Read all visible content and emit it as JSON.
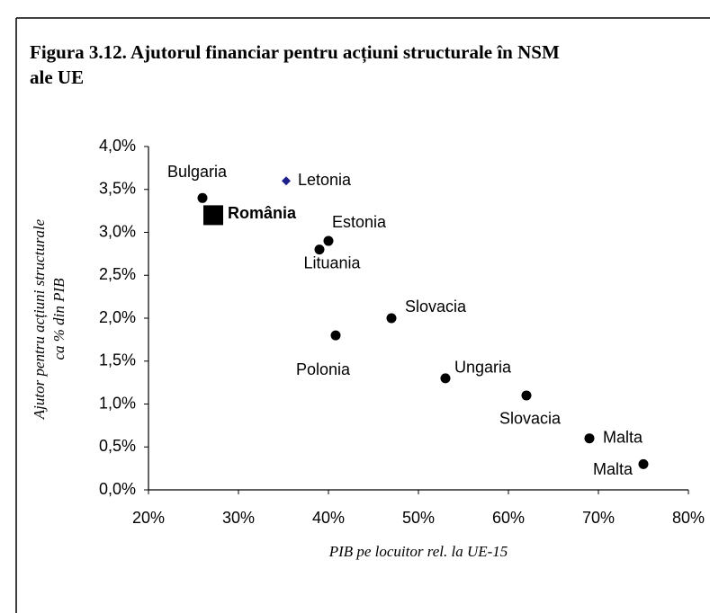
{
  "chart_data": {
    "type": "scatter",
    "title": "Figura 3.12. Ajutorul financiar pentru acțiuni structurale în NSM",
    "title_line2": "ale UE",
    "y_label": "Ajutor pentru acțiuni structurale",
    "y_label_line2": "ca % din PIB",
    "x_label": "PIB pe locuitor rel. la UE-15",
    "xlim": [
      20,
      80
    ],
    "xticks": [
      {
        "value": 20,
        "label": "20%"
      },
      {
        "value": 30,
        "label": "30%"
      },
      {
        "value": 40,
        "label": "40%"
      },
      {
        "value": 50,
        "label": "50%"
      },
      {
        "value": 60,
        "label": "60%"
      },
      {
        "value": 70,
        "label": "70%"
      },
      {
        "value": 80,
        "label": "80%"
      }
    ],
    "ylim": [
      0,
      4
    ],
    "yticks": [
      {
        "value": 0,
        "label": "0,0%"
      },
      {
        "value": 0.5,
        "label": "0,5%"
      },
      {
        "value": 1,
        "label": "1,0%"
      },
      {
        "value": 1.5,
        "label": "1,5%"
      },
      {
        "value": 2,
        "label": "2,0%"
      },
      {
        "value": 2.5,
        "label": "2,5%"
      },
      {
        "value": 3,
        "label": "3,0%"
      },
      {
        "value": 3.5,
        "label": "3,5%"
      },
      {
        "value": 4,
        "label": "4,0%"
      }
    ],
    "grid": false,
    "points": [
      {
        "label": "Bulgaria",
        "x": 26,
        "y": 3.4,
        "marker": "circle",
        "color": "#000000"
      },
      {
        "label": "Letonia",
        "x": 35.3,
        "y": 3.6,
        "marker": "diamond",
        "color": "#1f1f8c"
      },
      {
        "label": "România",
        "x": 27.2,
        "y": 3.2,
        "marker": "square",
        "color": "#000000"
      },
      {
        "label": "Estonia",
        "x": 40,
        "y": 2.9,
        "marker": "circle",
        "color": "#000000"
      },
      {
        "label": "Lituania",
        "x": 39,
        "y": 2.8,
        "marker": "circle",
        "color": "#000000"
      },
      {
        "label": "Slovacia",
        "x": 47,
        "y": 2.0,
        "marker": "circle",
        "color": "#000000"
      },
      {
        "label": "Polonia",
        "x": 40.8,
        "y": 1.8,
        "marker": "circle",
        "color": "#000000"
      },
      {
        "label": "Ungaria",
        "x": 53,
        "y": 1.3,
        "marker": "circle",
        "color": "#000000"
      },
      {
        "label": "Slovacia",
        "x": 62,
        "y": 1.1,
        "marker": "circle",
        "color": "#000000"
      },
      {
        "label": "Malta",
        "x": 69,
        "y": 0.6,
        "marker": "circle",
        "color": "#000000"
      },
      {
        "label": "Malta",
        "x": 75,
        "y": 0.3,
        "marker": "circle",
        "color": "#000000"
      }
    ]
  }
}
